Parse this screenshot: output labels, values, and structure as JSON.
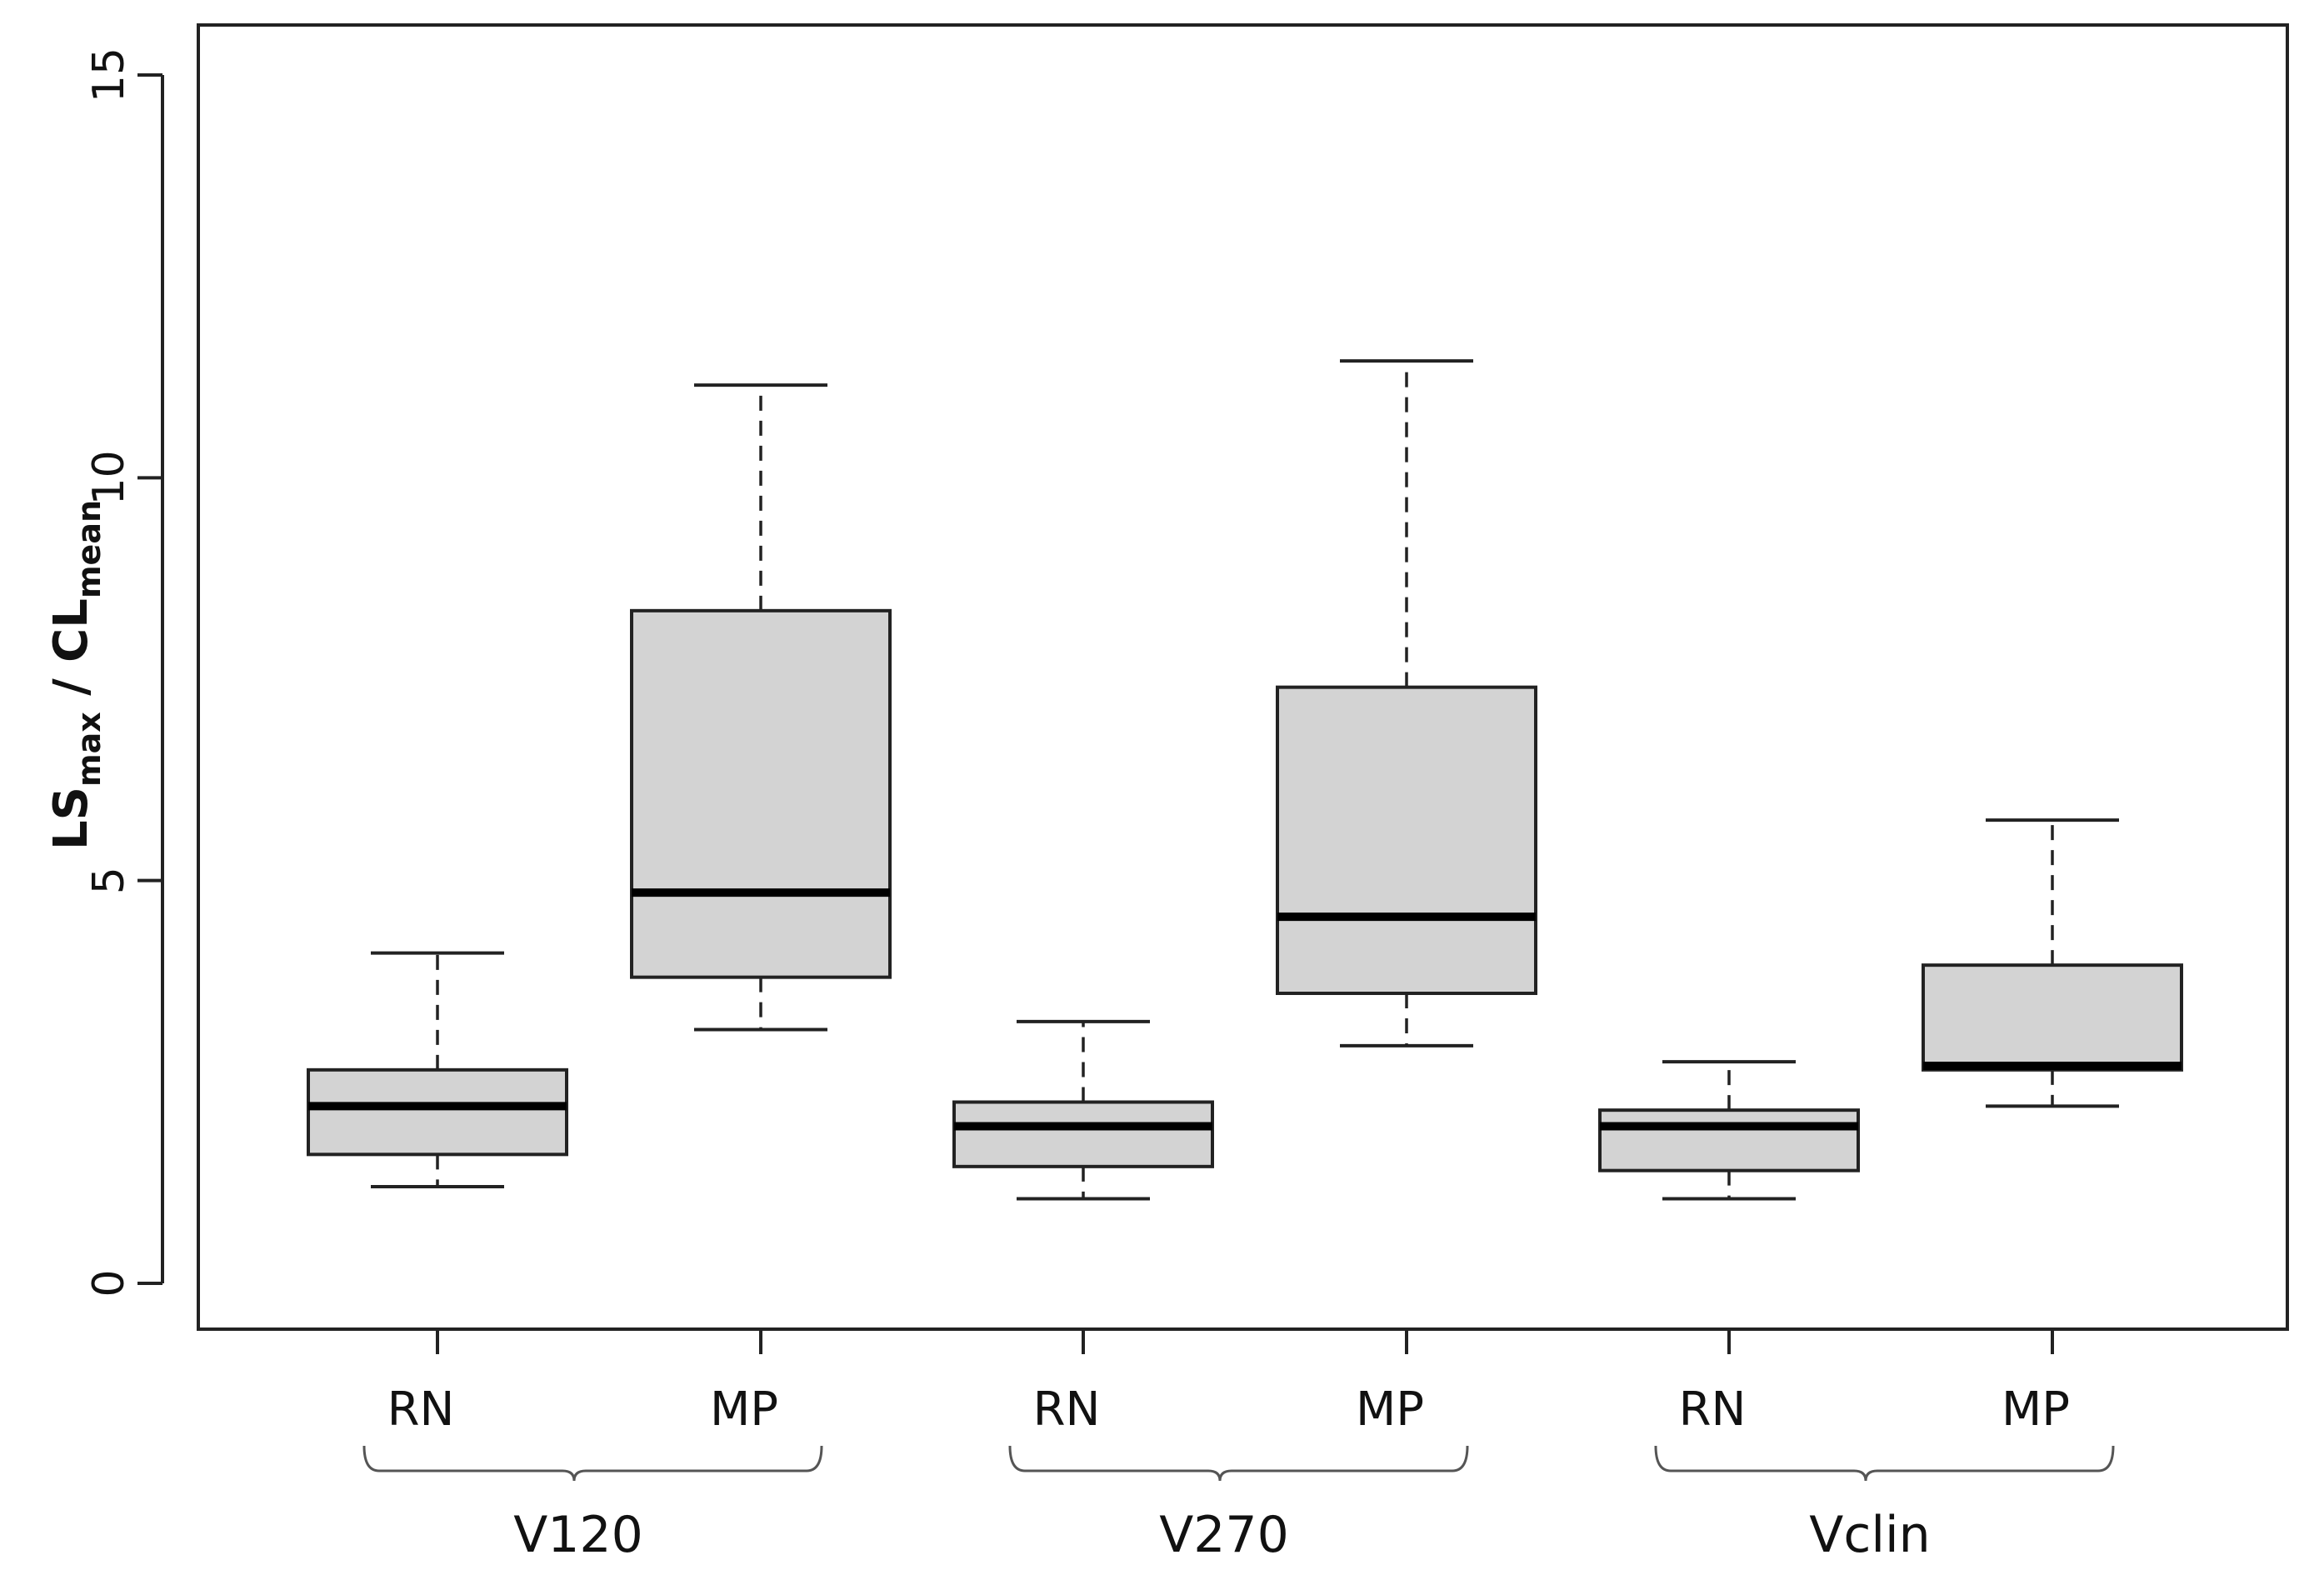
{
  "chart_data": {
    "type": "boxplot",
    "ylabel": {
      "main1": "LS",
      "sub1": "max",
      "sep": " / ",
      "main2": "CL",
      "sub2": "mean"
    },
    "ylim": [
      0,
      15
    ],
    "yticks": [
      0,
      5,
      10,
      15
    ],
    "grid": false,
    "legend": "none",
    "box_fill": "#d3d3d3",
    "groups": [
      {
        "label": "V120",
        "boxes": [
          {
            "label": "RN",
            "whisker_low": 1.2,
            "q1": 1.6,
            "median": 2.2,
            "q3": 2.65,
            "whisker_high": 4.1
          },
          {
            "label": "MP",
            "whisker_low": 3.15,
            "q1": 3.8,
            "median": 4.85,
            "q3": 8.35,
            "whisker_high": 11.15
          }
        ]
      },
      {
        "label": "V270",
        "boxes": [
          {
            "label": "RN",
            "whisker_low": 1.05,
            "q1": 1.45,
            "median": 1.95,
            "q3": 2.25,
            "whisker_high": 3.25
          },
          {
            "label": "MP",
            "whisker_low": 2.95,
            "q1": 3.6,
            "median": 4.55,
            "q3": 7.4,
            "whisker_high": 11.45
          }
        ]
      },
      {
        "label": "Vclin",
        "boxes": [
          {
            "label": "RN",
            "whisker_low": 1.05,
            "q1": 1.4,
            "median": 1.95,
            "q3": 2.15,
            "whisker_high": 2.75
          },
          {
            "label": "MP",
            "whisker_low": 2.2,
            "q1": 2.65,
            "median": 2.7,
            "q3": 3.95,
            "whisker_high": 5.75
          }
        ]
      }
    ]
  }
}
